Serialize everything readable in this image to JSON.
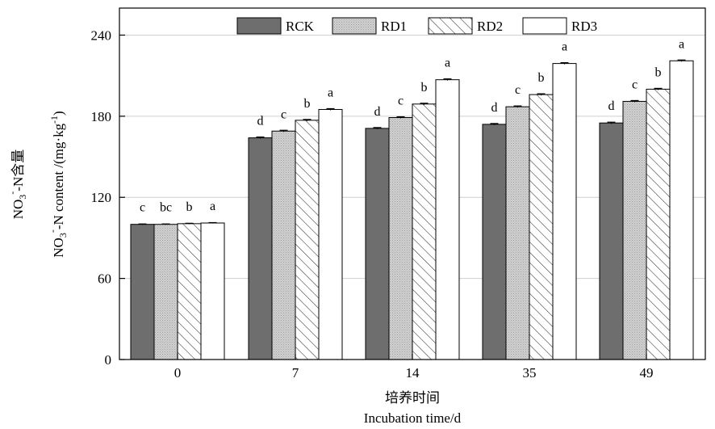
{
  "chart_data": {
    "type": "bar",
    "categories": [
      "0",
      "7",
      "14",
      "35",
      "49"
    ],
    "series": [
      {
        "name": "RCK",
        "values": [
          100,
          164,
          171,
          174,
          175
        ],
        "errors": [
          0.3,
          0.6,
          0.6,
          0.6,
          0.6
        ],
        "sig": [
          "c",
          "d",
          "d",
          "d",
          "d"
        ],
        "color": "#6e6e6e",
        "pattern": "solid"
      },
      {
        "name": "RD1",
        "values": [
          100,
          169,
          179,
          187,
          191
        ],
        "errors": [
          0.3,
          0.6,
          0.6,
          0.6,
          0.6
        ],
        "sig": [
          "bc",
          "c",
          "c",
          "c",
          "c"
        ],
        "color": "#c8c8c8",
        "pattern": "dotted"
      },
      {
        "name": "RD2",
        "values": [
          100.5,
          177,
          189,
          196,
          200
        ],
        "errors": [
          0.3,
          0.6,
          0.6,
          0.6,
          0.6
        ],
        "sig": [
          "b",
          "b",
          "b",
          "b",
          "b"
        ],
        "color": "#ffffff",
        "pattern": "hatched"
      },
      {
        "name": "RD3",
        "values": [
          101,
          185,
          207,
          219,
          221
        ],
        "errors": [
          0.3,
          0.6,
          0.6,
          0.6,
          0.6
        ],
        "sig": [
          "a",
          "a",
          "a",
          "a",
          "a"
        ],
        "color": "#ffffff",
        "pattern": "solid"
      }
    ],
    "title": "",
    "ylim": [
      0,
      260
    ],
    "yticks": [
      0,
      60,
      120,
      180,
      240
    ],
    "ylabel_cn": "NO3--N含量",
    "ylabel_en": "NO3--N content /(mg·kg-1)",
    "xlabel_cn": "培养时间",
    "xlabel_en": "Incubation time/d",
    "grid": true,
    "legend_position": "top"
  }
}
